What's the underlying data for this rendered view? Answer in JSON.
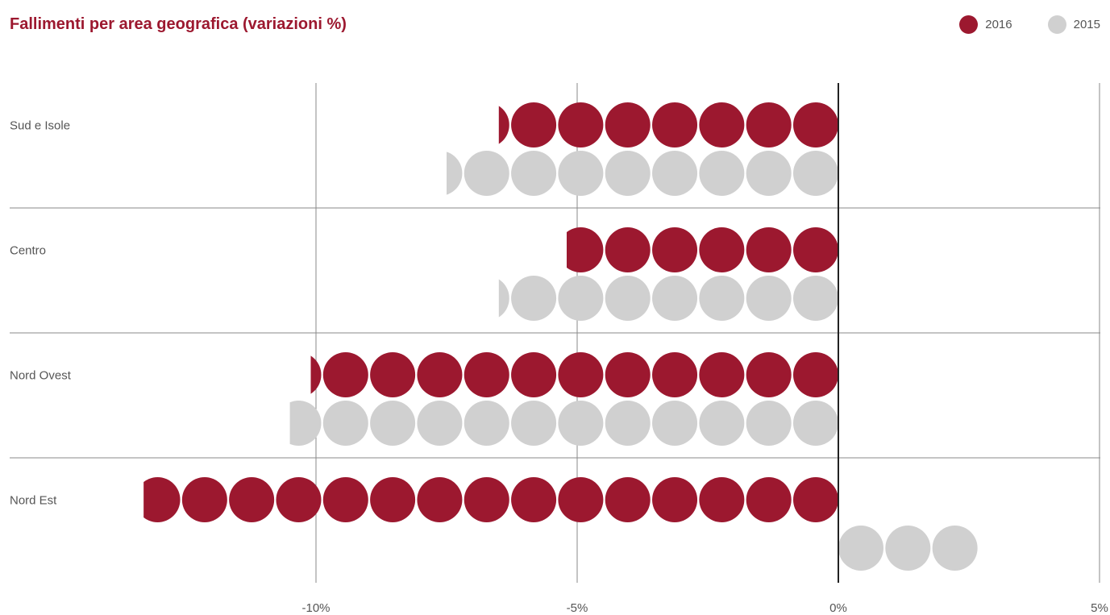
{
  "header": {
    "title": "Fallimenti per area geografica (variazioni %)"
  },
  "legend": {
    "items": [
      {
        "label": "2016",
        "color": "#9c182f"
      },
      {
        "label": "2015",
        "color": "#d0d0d0"
      }
    ]
  },
  "chart_data": {
    "type": "bar",
    "style": "dot-pictogram",
    "title": "Fallimenti per area geografica (variazioni %)",
    "unit_per_dot": 0.9,
    "categories": [
      "Sud e Isole",
      "Centro",
      "Nord Ovest",
      "Nord Est"
    ],
    "series": [
      {
        "name": "2016",
        "color": "#9c182f",
        "values": [
          -6.5,
          -5.2,
          -10.1,
          -13.3
        ]
      },
      {
        "name": "2015",
        "color": "#d0d0d0",
        "values": [
          -7.5,
          -6.5,
          -10.5,
          2.7
        ]
      }
    ],
    "xlim": [
      -13.5,
      5
    ],
    "xticks": [
      -10,
      -5,
      0,
      5
    ],
    "xtick_labels": [
      "-10%",
      "-5%",
      "0%",
      "5%"
    ],
    "grid": true,
    "legend_position": "top-right"
  }
}
